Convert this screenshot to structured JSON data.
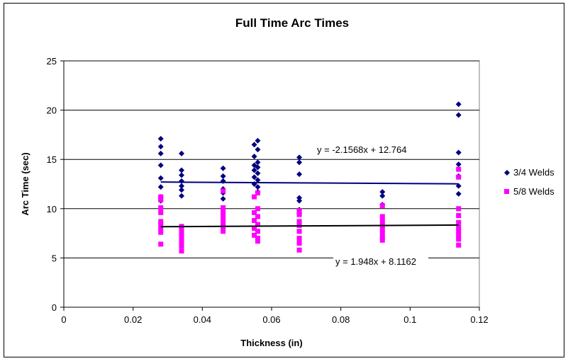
{
  "chart_data": {
    "type": "scatter",
    "title": "Full Time Arc Times",
    "xlabel": "Thickness (in)",
    "ylabel": "Arc Time (sec)",
    "xlim": [
      0,
      0.12
    ],
    "ylim": [
      0,
      25
    ],
    "x_ticks": [
      "0",
      "0.02",
      "0.04",
      "0.06",
      "0.08",
      "0.1",
      "0.12"
    ],
    "y_ticks": [
      "0",
      "5",
      "10",
      "15",
      "20",
      "25"
    ],
    "grid": "horizontal major gridlines",
    "legend_position": "right",
    "series": [
      {
        "name": "3/4 Welds",
        "color": "#000080",
        "marker": "diamond",
        "points": [
          [
            0.028,
            17.1
          ],
          [
            0.028,
            16.3
          ],
          [
            0.028,
            15.6
          ],
          [
            0.028,
            14.4
          ],
          [
            0.028,
            13.1
          ],
          [
            0.028,
            12.2
          ],
          [
            0.028,
            11.2
          ],
          [
            0.028,
            10.8
          ],
          [
            0.034,
            15.6
          ],
          [
            0.034,
            13.9
          ],
          [
            0.034,
            13.4
          ],
          [
            0.034,
            12.8
          ],
          [
            0.034,
            12.3
          ],
          [
            0.034,
            11.9
          ],
          [
            0.034,
            11.3
          ],
          [
            0.046,
            14.1
          ],
          [
            0.046,
            13.3
          ],
          [
            0.046,
            12.8
          ],
          [
            0.046,
            12.0
          ],
          [
            0.046,
            11.6
          ],
          [
            0.046,
            11.0
          ],
          [
            0.056,
            16.9
          ],
          [
            0.055,
            16.5
          ],
          [
            0.056,
            16.0
          ],
          [
            0.055,
            15.3
          ],
          [
            0.056,
            14.7
          ],
          [
            0.055,
            14.4
          ],
          [
            0.056,
            14.2
          ],
          [
            0.055,
            13.9
          ],
          [
            0.056,
            13.6
          ],
          [
            0.055,
            13.2
          ],
          [
            0.056,
            12.9
          ],
          [
            0.055,
            12.5
          ],
          [
            0.056,
            12.2
          ],
          [
            0.056,
            11.7
          ],
          [
            0.068,
            15.2
          ],
          [
            0.068,
            14.7
          ],
          [
            0.068,
            13.5
          ],
          [
            0.068,
            11.1
          ],
          [
            0.068,
            10.8
          ],
          [
            0.068,
            9.9
          ],
          [
            0.068,
            9.5
          ],
          [
            0.092,
            11.7
          ],
          [
            0.092,
            11.3
          ],
          [
            0.092,
            10.4
          ],
          [
            0.114,
            20.6
          ],
          [
            0.114,
            19.5
          ],
          [
            0.114,
            15.7
          ],
          [
            0.114,
            14.5
          ],
          [
            0.114,
            13.3
          ],
          [
            0.114,
            12.3
          ],
          [
            0.114,
            11.5
          ]
        ],
        "trendline": {
          "equation": "y = -2.1568x + 12.764",
          "slope": -2.1568,
          "intercept": 12.764,
          "color": "#000080"
        }
      },
      {
        "name": "5/8 Welds",
        "color": "#ff00ff",
        "marker": "square",
        "points": [
          [
            0.028,
            11.2
          ],
          [
            0.028,
            10.9
          ],
          [
            0.028,
            10.1
          ],
          [
            0.028,
            9.6
          ],
          [
            0.028,
            8.7
          ],
          [
            0.028,
            8.4
          ],
          [
            0.028,
            8.0
          ],
          [
            0.028,
            7.6
          ],
          [
            0.028,
            6.4
          ],
          [
            0.034,
            8.2
          ],
          [
            0.034,
            7.9
          ],
          [
            0.034,
            7.5
          ],
          [
            0.034,
            7.1
          ],
          [
            0.034,
            6.8
          ],
          [
            0.034,
            6.5
          ],
          [
            0.034,
            6.2
          ],
          [
            0.034,
            5.7
          ],
          [
            0.046,
            11.8
          ],
          [
            0.046,
            10.1
          ],
          [
            0.046,
            9.7
          ],
          [
            0.046,
            9.4
          ],
          [
            0.046,
            9.0
          ],
          [
            0.046,
            8.6
          ],
          [
            0.046,
            8.3
          ],
          [
            0.046,
            8.0
          ],
          [
            0.046,
            7.7
          ],
          [
            0.056,
            11.6
          ],
          [
            0.055,
            11.2
          ],
          [
            0.056,
            10.0
          ],
          [
            0.055,
            9.6
          ],
          [
            0.056,
            9.2
          ],
          [
            0.055,
            8.8
          ],
          [
            0.056,
            8.4
          ],
          [
            0.055,
            8.0
          ],
          [
            0.056,
            7.7
          ],
          [
            0.055,
            7.3
          ],
          [
            0.056,
            7.0
          ],
          [
            0.056,
            6.7
          ],
          [
            0.068,
            9.8
          ],
          [
            0.068,
            9.4
          ],
          [
            0.068,
            8.7
          ],
          [
            0.068,
            8.3
          ],
          [
            0.068,
            7.7
          ],
          [
            0.068,
            7.0
          ],
          [
            0.068,
            6.5
          ],
          [
            0.068,
            5.8
          ],
          [
            0.092,
            10.3
          ],
          [
            0.092,
            9.2
          ],
          [
            0.092,
            8.8
          ],
          [
            0.092,
            8.3
          ],
          [
            0.092,
            7.9
          ],
          [
            0.092,
            7.5
          ],
          [
            0.092,
            7.1
          ],
          [
            0.092,
            6.8
          ],
          [
            0.114,
            14.0
          ],
          [
            0.114,
            13.2
          ],
          [
            0.114,
            10.0
          ],
          [
            0.114,
            9.3
          ],
          [
            0.114,
            8.6
          ],
          [
            0.114,
            8.1
          ],
          [
            0.114,
            7.7
          ],
          [
            0.114,
            7.3
          ],
          [
            0.114,
            6.9
          ],
          [
            0.114,
            6.3
          ]
        ],
        "trendline": {
          "equation": "y = 1.948x + 8.1162",
          "slope": 1.948,
          "intercept": 8.1162,
          "color": "#000000"
        }
      }
    ]
  }
}
